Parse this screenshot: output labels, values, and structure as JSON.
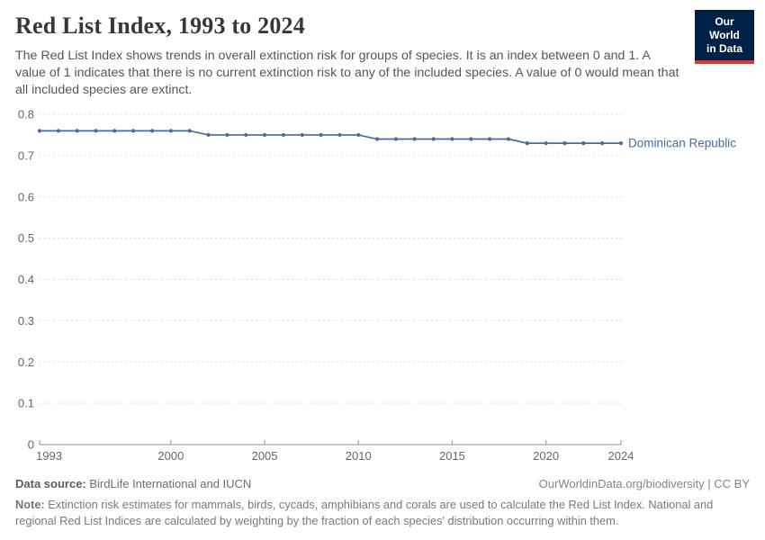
{
  "header": {
    "title": "Red List Index, 1993 to 2024",
    "subtitle": "The Red List Index shows trends in overall extinction risk for groups of species. It is an index between 0 and 1. A value of 1 indicates that there is no current extinction risk to any of the included species. A value of 0 would mean that all included species are extinct.",
    "logo": {
      "line1": "Our World",
      "line2": "in Data"
    }
  },
  "chart_data": {
    "type": "line",
    "title": "Red List Index, 1993 to 2024",
    "xlabel": "",
    "ylabel": "",
    "xlim": [
      1993,
      2024
    ],
    "ylim": [
      0,
      0.8
    ],
    "grid": "horizontal-dashed",
    "legend_position": "end-of-line-label",
    "x": [
      1993,
      1994,
      1995,
      1996,
      1997,
      1998,
      1999,
      2000,
      2001,
      2002,
      2003,
      2004,
      2005,
      2006,
      2007,
      2008,
      2009,
      2010,
      2011,
      2012,
      2013,
      2014,
      2015,
      2016,
      2017,
      2018,
      2019,
      2020,
      2021,
      2022,
      2023,
      2024
    ],
    "series": [
      {
        "name": "Dominican Republic",
        "color": "#4C6A9C",
        "values": [
          0.76,
          0.76,
          0.76,
          0.76,
          0.76,
          0.76,
          0.76,
          0.76,
          0.76,
          0.75,
          0.75,
          0.75,
          0.75,
          0.75,
          0.75,
          0.75,
          0.75,
          0.75,
          0.74,
          0.74,
          0.74,
          0.74,
          0.74,
          0.74,
          0.74,
          0.74,
          0.73,
          0.73,
          0.73,
          0.73,
          0.73,
          0.73
        ]
      }
    ],
    "xticks": [
      1993,
      2000,
      2005,
      2010,
      2015,
      2020,
      2024
    ],
    "xtick_labels": [
      "1993",
      "2000",
      "2005",
      "2010",
      "2015",
      "2020",
      "2024"
    ],
    "yticks": [
      0,
      0.1,
      0.2,
      0.3,
      0.4,
      0.5,
      0.6,
      0.7,
      0.8
    ],
    "ytick_labels": [
      "0",
      "0.1",
      "0.2",
      "0.3",
      "0.4",
      "0.5",
      "0.6",
      "0.7",
      "0.8"
    ]
  },
  "theme": {
    "line_color": "#4C6A9C",
    "grid_color": "#dcdcdc",
    "axis_color": "#a8a8a8",
    "tick_text_color": "#666666",
    "logo_bg": "#002147",
    "logo_stripe": "#e0362c"
  },
  "footer": {
    "datasource_label": "Data source:",
    "datasource_value": "BirdLife International and IUCN",
    "attribution": "OurWorldinData.org/biodiversity | CC BY",
    "note_label": "Note:",
    "note_value": "Extinction risk estimates for mammals, birds, cycads, amphibians and corals are used to calculate the Red List Index. National and regional Red List Indices are calculated by weighting by the fraction of each species' distribution occurring within them."
  }
}
